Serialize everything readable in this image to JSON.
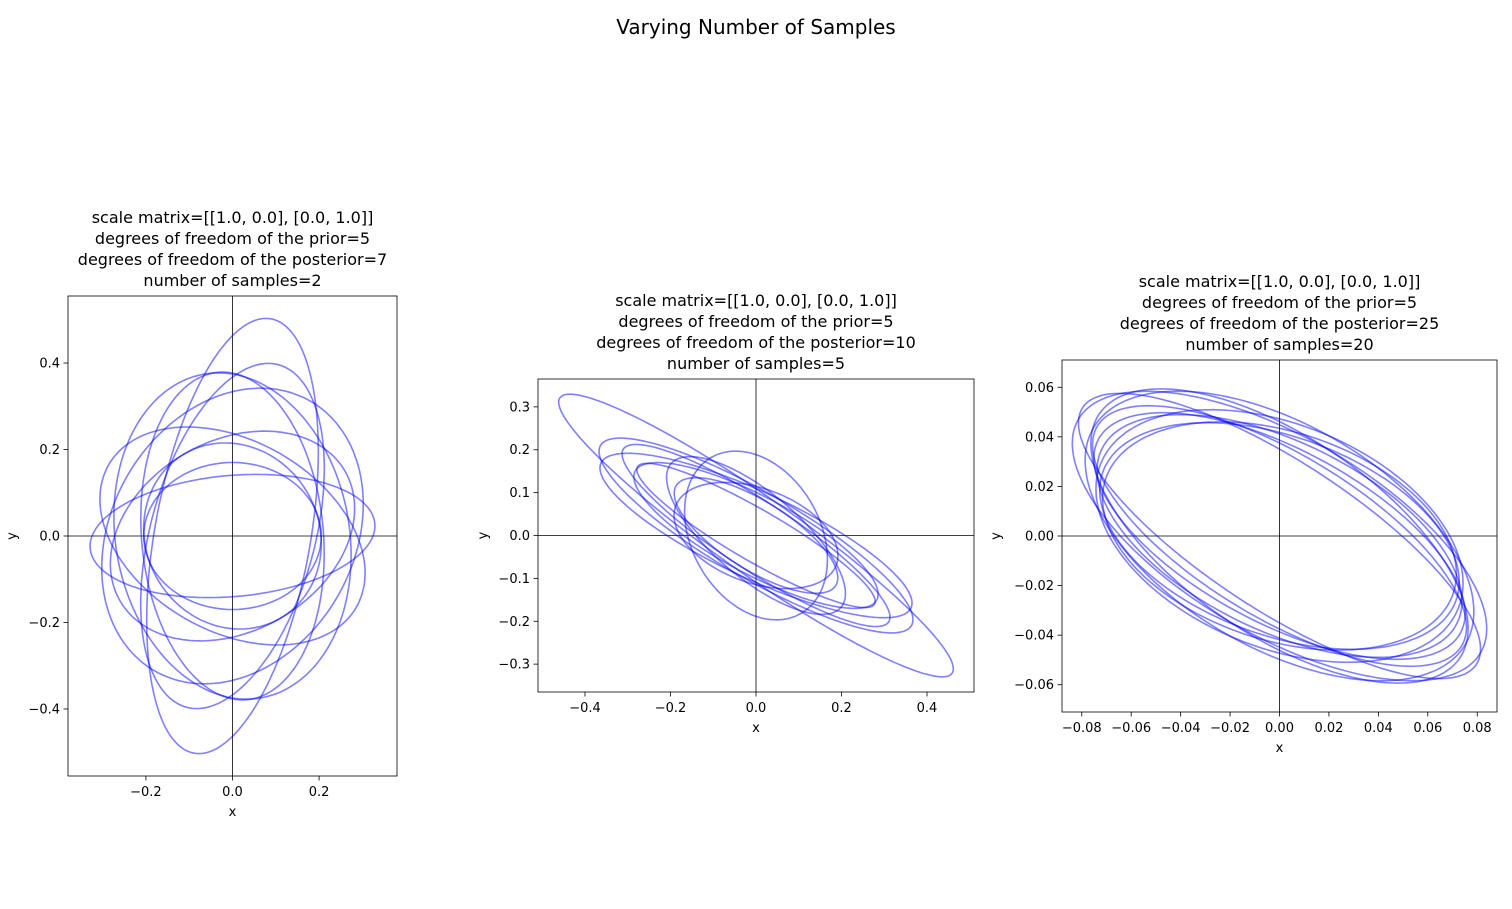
{
  "figure": {
    "title": "Varying Number of Samples",
    "ellipse_color": "#0000ff",
    "ellipse_opacity": 0.5,
    "axis_line_color": "#000000"
  },
  "chart_data": [
    {
      "type": "line",
      "title_lines": [
        "scale matrix=[[1.0, 0.0], [0.0, 1.0]]",
        "degrees of freedom of the prior=5",
        "degrees of freedom of the posterior=7",
        "number of samples=2"
      ],
      "xlabel": "x",
      "ylabel": "y",
      "xlim": [
        -0.38,
        0.38
      ],
      "ylim": [
        -0.555,
        0.555
      ],
      "xticks": [
        -0.2,
        0.0,
        0.2
      ],
      "xtick_labels": [
        "−0.2",
        "0.0",
        "0.2"
      ],
      "yticks": [
        -0.4,
        -0.2,
        0.0,
        0.2,
        0.4
      ],
      "ytick_labels": [
        "−0.4",
        "−0.2",
        "0.0",
        "0.2",
        "0.4"
      ],
      "ellipses": [
        {
          "a": 0.205,
          "b": 0.17,
          "angle_deg": 0
        },
        {
          "a": 0.51,
          "b": 0.18,
          "angle_deg": 80
        },
        {
          "a": 0.33,
          "b": 0.14,
          "angle_deg": 5
        },
        {
          "a": 0.36,
          "b": 0.28,
          "angle_deg": 60
        },
        {
          "a": 0.41,
          "b": 0.19,
          "angle_deg": 75
        },
        {
          "a": 0.3,
          "b": 0.22,
          "angle_deg": 30
        },
        {
          "a": 0.38,
          "b": 0.21,
          "angle_deg": 95
        },
        {
          "a": 0.22,
          "b": 0.2,
          "angle_deg": 120
        },
        {
          "a": 0.33,
          "b": 0.22,
          "angle_deg": 150
        },
        {
          "a": 0.38,
          "b": 0.27,
          "angle_deg": 100
        }
      ]
    },
    {
      "type": "line",
      "title_lines": [
        "scale matrix=[[1.0, 0.0], [0.0, 1.0]]",
        "degrees of freedom of the prior=5",
        "degrees of freedom of the posterior=10",
        "number of samples=5"
      ],
      "xlabel": "x",
      "ylabel": "y",
      "xlim": [
        -0.51,
        0.51
      ],
      "ylim": [
        -0.365,
        0.365
      ],
      "xticks": [
        -0.4,
        -0.2,
        0.0,
        0.2,
        0.4
      ],
      "xtick_labels": [
        "−0.4",
        "−0.2",
        "0.0",
        "0.2",
        "0.4"
      ],
      "yticks": [
        -0.3,
        -0.2,
        -0.1,
        0.0,
        0.1,
        0.2,
        0.3
      ],
      "ytick_labels": [
        "−0.3",
        "−0.2",
        "−0.1",
        "0.0",
        "0.1",
        "0.2",
        "0.3"
      ],
      "ellipses": [
        {
          "a": 0.56,
          "b": 0.09,
          "angle_deg": -35
        },
        {
          "a": 0.37,
          "b": 0.08,
          "angle_deg": -33
        },
        {
          "a": 0.32,
          "b": 0.06,
          "angle_deg": -30
        },
        {
          "a": 0.21,
          "b": 0.15,
          "angle_deg": -60
        },
        {
          "a": 0.42,
          "b": 0.1,
          "angle_deg": -30
        },
        {
          "a": 0.4,
          "b": 0.1,
          "angle_deg": -25
        },
        {
          "a": 0.2,
          "b": 0.11,
          "angle_deg": -20
        },
        {
          "a": 0.32,
          "b": 0.09,
          "angle_deg": -28
        },
        {
          "a": 0.22,
          "b": 0.08,
          "angle_deg": -32
        },
        {
          "a": 0.26,
          "b": 0.1,
          "angle_deg": -40
        }
      ]
    },
    {
      "type": "line",
      "title_lines": [
        "scale matrix=[[1.0, 0.0], [0.0, 1.0]]",
        "degrees of freedom of the prior=5",
        "degrees of freedom of the posterior=25",
        "number of samples=20"
      ],
      "xlabel": "x",
      "ylabel": "y",
      "xlim": [
        -0.088,
        0.088
      ],
      "ylim": [
        -0.071,
        0.071
      ],
      "xticks": [
        -0.08,
        -0.06,
        -0.04,
        -0.02,
        0.0,
        0.02,
        0.04,
        0.06,
        0.08
      ],
      "xtick_labels": [
        "−0.08",
        "−0.06",
        "−0.04",
        "−0.02",
        "0.00",
        "0.02",
        "0.04",
        "0.06",
        "0.08"
      ],
      "yticks": [
        -0.06,
        -0.04,
        -0.02,
        0.0,
        0.02,
        0.04,
        0.06
      ],
      "ytick_labels": [
        "−0.06",
        "−0.04",
        "−0.02",
        "0.00",
        "0.02",
        "0.04",
        "0.06"
      ],
      "ellipses": [
        {
          "a": 0.094,
          "b": 0.04,
          "angle_deg": -30
        },
        {
          "a": 0.087,
          "b": 0.045,
          "angle_deg": -30
        },
        {
          "a": 0.088,
          "b": 0.04,
          "angle_deg": -34
        },
        {
          "a": 0.076,
          "b": 0.04,
          "angle_deg": -20
        },
        {
          "a": 0.078,
          "b": 0.045,
          "angle_deg": -22
        },
        {
          "a": 0.095,
          "b": 0.03,
          "angle_deg": -33
        },
        {
          "a": 0.083,
          "b": 0.035,
          "angle_deg": -28
        },
        {
          "a": 0.08,
          "b": 0.038,
          "angle_deg": -26
        },
        {
          "a": 0.086,
          "b": 0.033,
          "angle_deg": -31
        },
        {
          "a": 0.074,
          "b": 0.042,
          "angle_deg": -18
        }
      ]
    }
  ]
}
